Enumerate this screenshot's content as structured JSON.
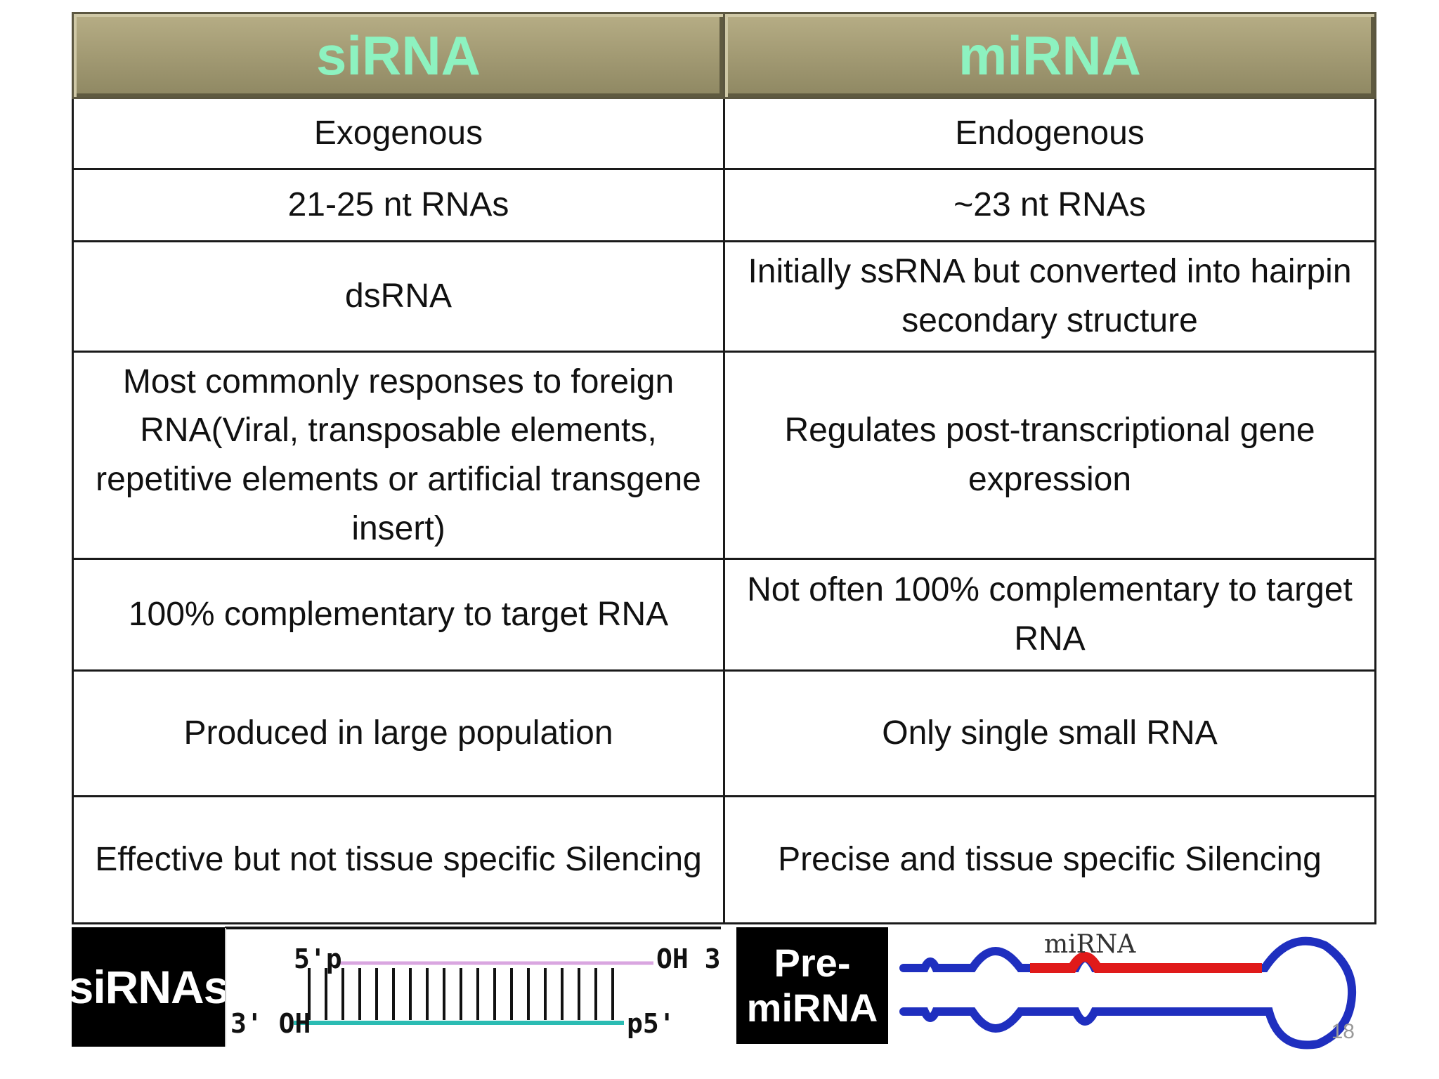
{
  "table": {
    "headers": [
      "siRNA",
      "miRNA"
    ],
    "rows": [
      [
        "Exogenous",
        "Endogenous"
      ],
      [
        "21-25 nt RNAs",
        "~23 nt RNAs"
      ],
      [
        "dsRNA",
        "Initially ssRNA but converted into hairpin secondary structure"
      ],
      [
        "Most commonly responses to foreign RNA(Viral, transposable elements, repetitive elements or artificial transgene insert)",
        "Regulates post-transcriptional gene expression"
      ],
      [
        "100% complementary to target RNA",
        "Not often 100% complementary to target RNA"
      ],
      [
        "Produced in large population",
        "Only single small RNA"
      ],
      [
        "Effective but not tissue specific Silencing",
        "Precise and tissue specific Silencing"
      ]
    ]
  },
  "sirna_figure": {
    "label": "siRNAs",
    "top_left": "5'p",
    "top_right": "OH 3'",
    "bottom_left": "3' OH",
    "bottom_right": "p5'",
    "top_strand_color": "#d9a6e0",
    "bottom_strand_color": "#2bbcb3"
  },
  "mirna_figure": {
    "label_line1": "Pre-",
    "label_line2": "miRNA",
    "annotation": "miRNA",
    "hairpin_color": "#1f2fbf",
    "mirna_color": "#e01a1a"
  },
  "page_number": "18"
}
